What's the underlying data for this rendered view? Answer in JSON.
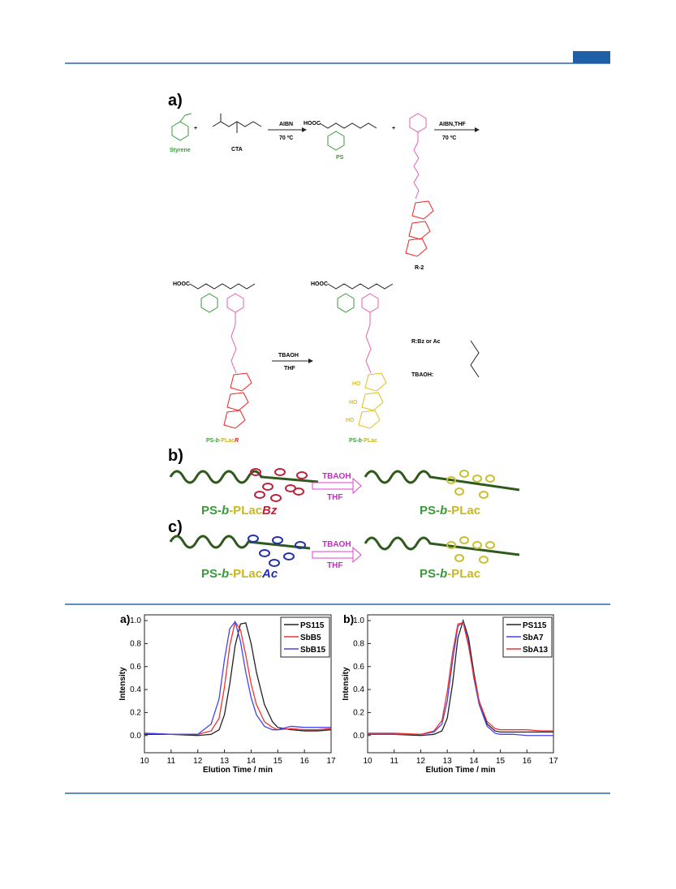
{
  "scheme": {
    "a_label": "a)",
    "styrene": "Styrene",
    "cta": "CTA",
    "step1_reagent": "AIBN",
    "step1_cond": "70 ºC",
    "ps": "PS",
    "step2_reagent": "AIBN,THF",
    "step2_cond": "70 ºC",
    "r2": "R-2",
    "step3_reagent": "TBAOH",
    "step3_cond": "THF",
    "r_note": "R:Bz or Ac",
    "tbaoh": "TBAOH:",
    "hooc": "HOOC",
    "ho": "HO",
    "product_r": [
      "PS-",
      "b",
      "-PLac",
      "R"
    ],
    "product": [
      "PS-",
      "b",
      "-PLac"
    ],
    "b_label": "b)",
    "c_label": "c)",
    "b_left": [
      "PS-",
      "b",
      "-PLac",
      "Bz"
    ],
    "b_right": [
      "PS-",
      "b",
      "-PLac"
    ],
    "c_left": [
      "PS-",
      "b",
      "-PLac",
      "Ac"
    ],
    "c_right": [
      "PS-",
      "b",
      "-PLac"
    ],
    "arrow_top": "TBAOH",
    "arrow_bottom": "THF"
  },
  "chart_data": [
    {
      "type": "line",
      "panel": "a)",
      "xlabel": "Elution Time / min",
      "ylabel": "Intensity",
      "x": [
        10,
        11,
        12,
        12.5,
        12.8,
        13,
        13.2,
        13.4,
        13.6,
        13.8,
        14,
        14.2,
        14.5,
        14.8,
        15,
        15.5,
        16,
        16.5,
        17
      ],
      "series": [
        {
          "name": "PS115",
          "color": "#222222",
          "values": [
            0.01,
            0.01,
            0.0,
            0.01,
            0.05,
            0.18,
            0.45,
            0.78,
            0.97,
            0.98,
            0.8,
            0.55,
            0.27,
            0.12,
            0.07,
            0.05,
            0.04,
            0.04,
            0.05
          ]
        },
        {
          "name": "SbB5",
          "color": "#ee3333",
          "values": [
            0.02,
            0.01,
            0.01,
            0.04,
            0.15,
            0.42,
            0.78,
            0.99,
            0.92,
            0.7,
            0.45,
            0.27,
            0.12,
            0.07,
            0.05,
            0.06,
            0.05,
            0.05,
            0.06
          ]
        },
        {
          "name": "SbB15",
          "color": "#4444ee",
          "values": [
            0.02,
            0.01,
            0.01,
            0.1,
            0.32,
            0.66,
            0.93,
            0.99,
            0.82,
            0.55,
            0.33,
            0.18,
            0.08,
            0.05,
            0.05,
            0.08,
            0.07,
            0.07,
            0.07
          ]
        }
      ],
      "xlim": [
        10,
        17
      ],
      "xticks": [
        10,
        11,
        12,
        13,
        14,
        15,
        16,
        17
      ],
      "ylim": [
        -0.15,
        1.05
      ],
      "yticks": [
        {
          "value": 0,
          "label": "0.0"
        },
        0.2,
        0.4,
        0.6,
        0.8,
        {
          "value": 1,
          "label": "1.0"
        }
      ]
    },
    {
      "type": "line",
      "panel": "b)",
      "xlabel": "Elution Time / min",
      "ylabel": "Intensity",
      "x": [
        10,
        11,
        12,
        12.5,
        12.8,
        13,
        13.2,
        13.4,
        13.6,
        13.8,
        14,
        14.2,
        14.5,
        14.8,
        15,
        15.5,
        16,
        16.5,
        17
      ],
      "series": [
        {
          "name": "PS115",
          "color": "#222222",
          "values": [
            0.01,
            0.01,
            0.0,
            0.01,
            0.04,
            0.15,
            0.45,
            0.85,
            1.0,
            0.85,
            0.55,
            0.3,
            0.1,
            0.04,
            0.03,
            0.03,
            0.03,
            0.03,
            0.03
          ]
        },
        {
          "name": "SbA7",
          "color": "#4444ee",
          "values": [
            0.01,
            0.01,
            0.01,
            0.03,
            0.1,
            0.3,
            0.65,
            0.95,
            0.99,
            0.8,
            0.5,
            0.27,
            0.08,
            0.02,
            0.01,
            0.01,
            0.0,
            0.0,
            0.0
          ]
        },
        {
          "name": "SbA13",
          "color": "#ee3333",
          "values": [
            0.02,
            0.02,
            0.01,
            0.04,
            0.13,
            0.38,
            0.72,
            0.97,
            0.98,
            0.78,
            0.52,
            0.3,
            0.12,
            0.06,
            0.05,
            0.05,
            0.05,
            0.04,
            0.04
          ]
        }
      ],
      "xlim": [
        10,
        17
      ],
      "xticks": [
        10,
        11,
        12,
        13,
        14,
        15,
        16,
        17
      ],
      "ylim": [
        -0.15,
        1.05
      ],
      "yticks": [
        {
          "value": 0,
          "label": "0.0"
        },
        0.2,
        0.4,
        0.6,
        0.8,
        {
          "value": 1,
          "label": "1.0"
        }
      ]
    }
  ]
}
